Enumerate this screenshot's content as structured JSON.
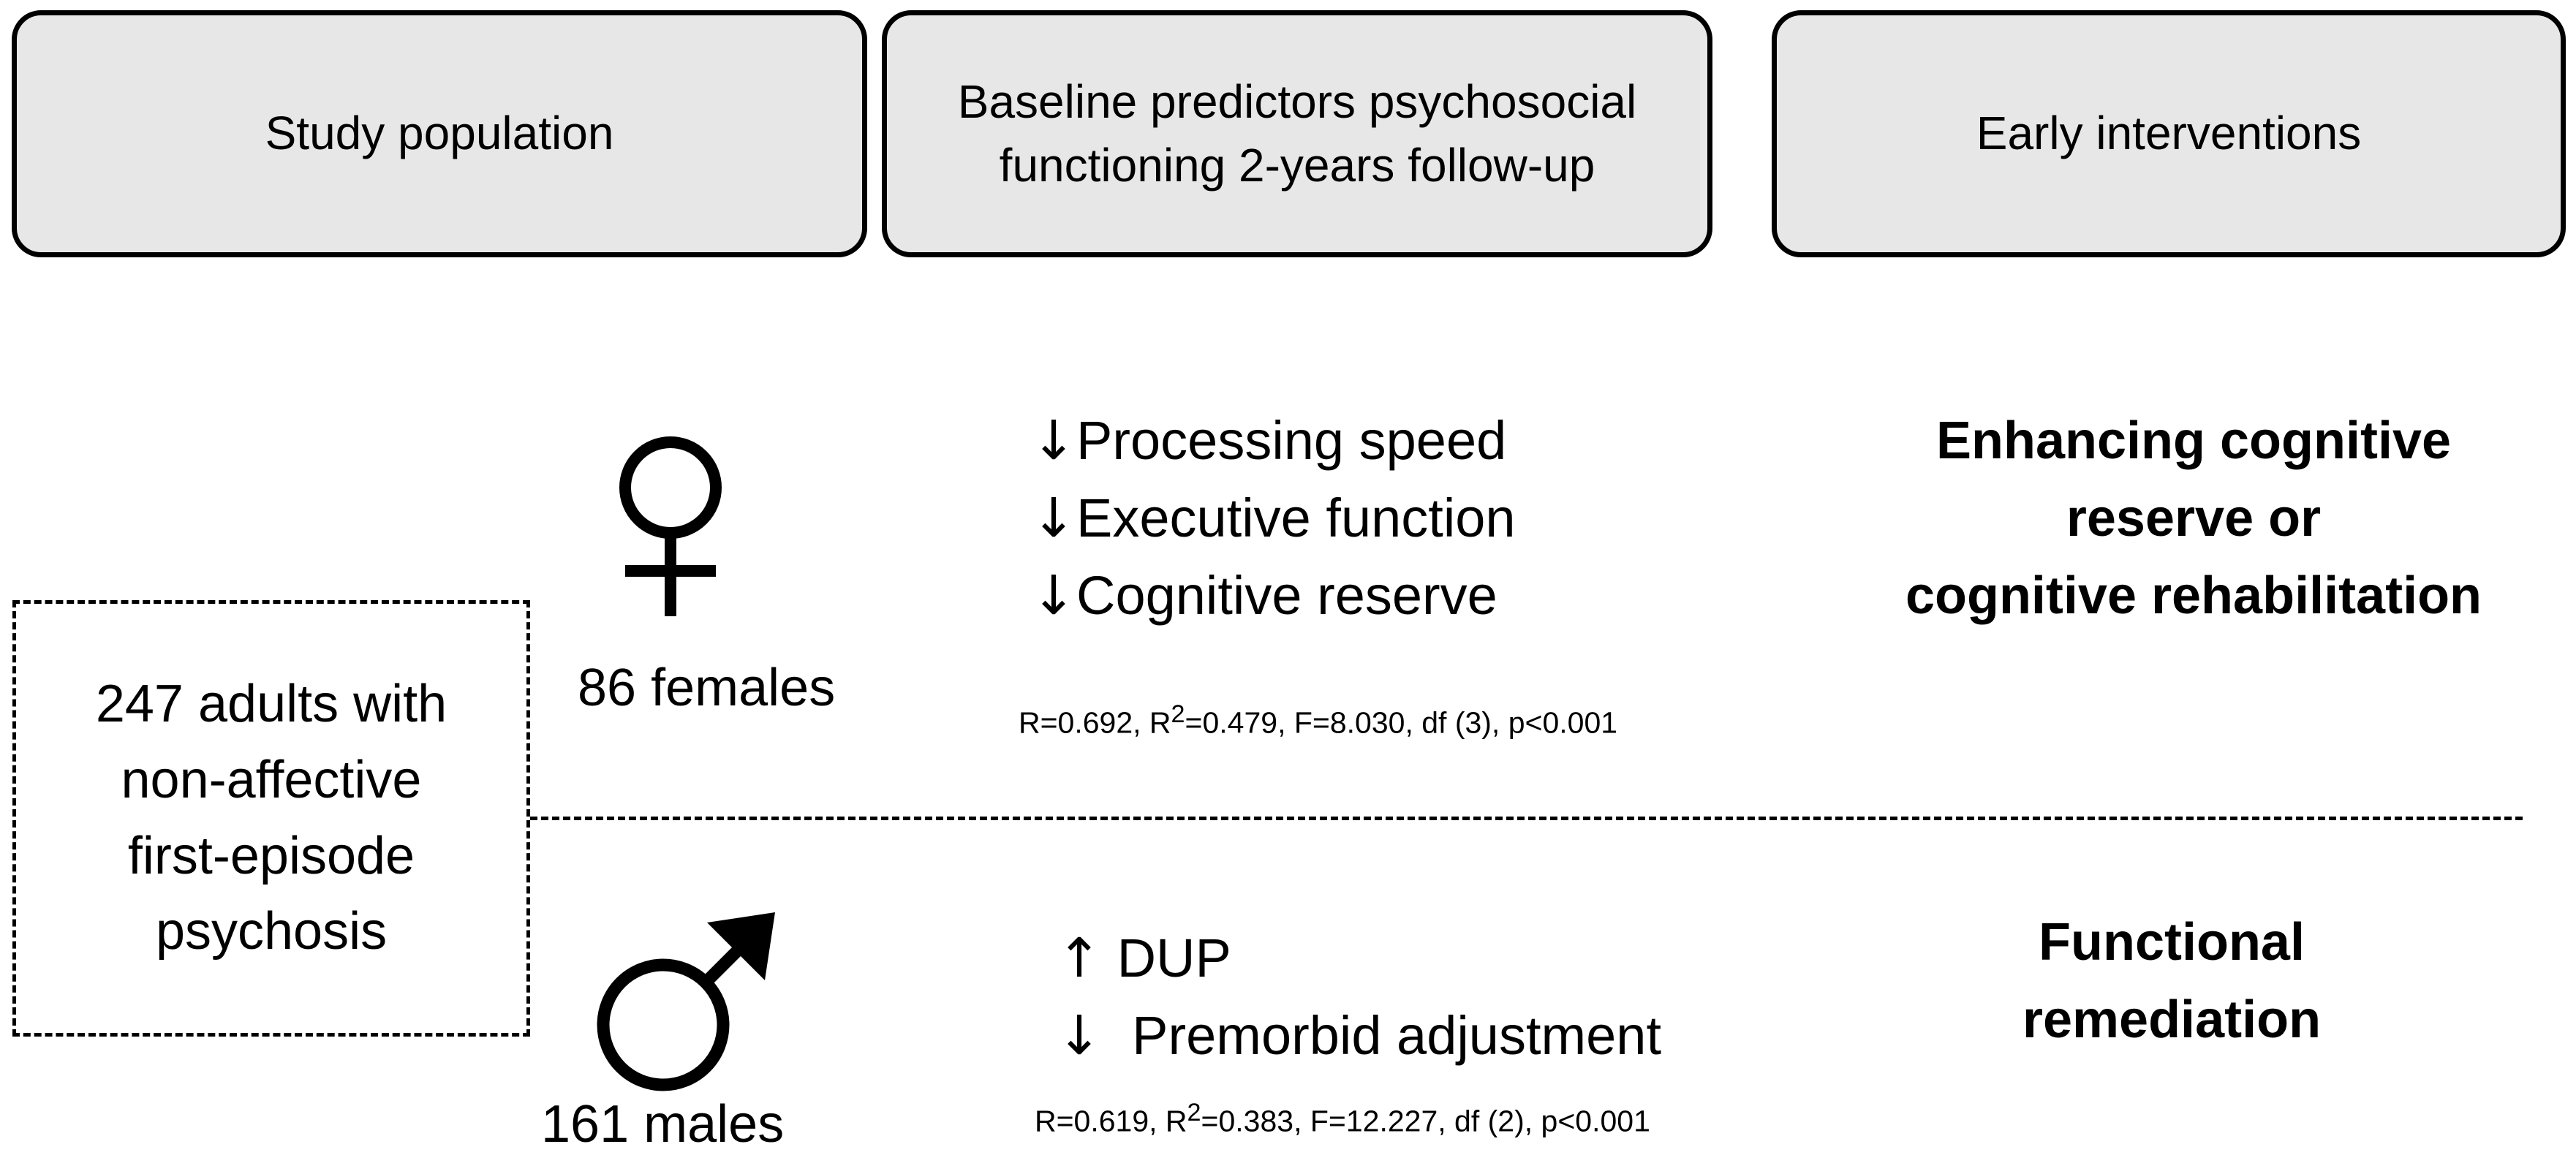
{
  "headers": [
    "Study population",
    "Baseline predictors psychosocial functioning 2-years follow-up",
    "Early interventions"
  ],
  "population": {
    "lines": [
      "247 adults with",
      "non-affective",
      "first-episode",
      "psychosis"
    ]
  },
  "female": {
    "symbol": "female-symbol",
    "count_label": "86 females",
    "predictors": [
      {
        "arrow": "↓",
        "label": "Processing speed"
      },
      {
        "arrow": "↓",
        "label": "Executive function"
      },
      {
        "arrow": "↓",
        "label": "Cognitive reserve"
      }
    ],
    "stats": {
      "r": "R=0.692, R",
      "r2_sup": "2",
      "rest": "=0.479, F=8.030, df (3), p<0.001"
    },
    "intervention_lines": [
      "Enhancing cognitive",
      "reserve or",
      "cognitive rehabilitation"
    ]
  },
  "male": {
    "symbol": "male-symbol",
    "count_label": "161 males",
    "predictors": [
      {
        "arrow": "↑",
        "label": "DUP"
      },
      {
        "arrow": "↓",
        "label": "Premorbid adjustment"
      }
    ],
    "stats": {
      "r": "R=0.619, R",
      "r2_sup": "2",
      "rest": "=0.383, F=12.227, df (2), p<0.001"
    },
    "intervention_lines": [
      "Functional",
      "remediation"
    ]
  }
}
